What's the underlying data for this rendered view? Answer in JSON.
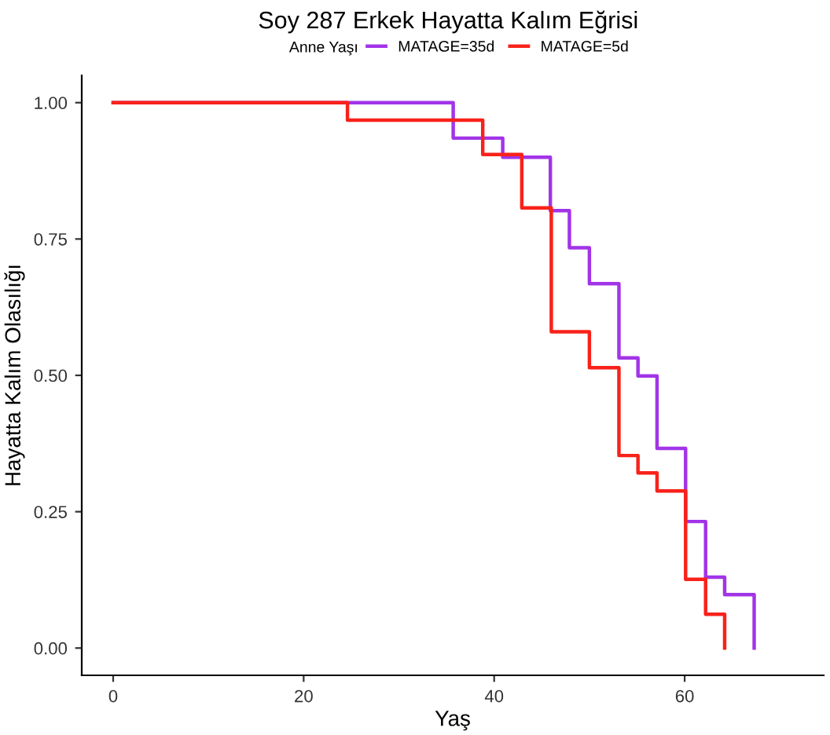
{
  "chart_data": {
    "type": "step",
    "title": "Soy 287 Erkek Hayatta Kalım Eğrisi",
    "xlabel": "Yaş",
    "ylabel": "Hayatta Kalım Olasılığı",
    "legend_title": "Anne Yaşı",
    "legend": "top",
    "grid": false,
    "xlim": [
      -3.3,
      74.6
    ],
    "xticks": [
      0,
      20,
      40,
      60
    ],
    "ylim": [
      -0.05,
      1.05
    ],
    "yticks": [
      {
        "value": 0,
        "label": "0.00"
      },
      {
        "value": 0.25,
        "label": "0.25"
      },
      {
        "value": 0.5,
        "label": "0.50"
      },
      {
        "value": 0.75,
        "label": "0.75"
      },
      {
        "value": 1,
        "label": "1.00"
      }
    ],
    "series": [
      {
        "name": "MATAGE=35d",
        "color": "#a234e8",
        "x": [
          0,
          35.7,
          40.9,
          45.9,
          47.9,
          50.0,
          53.1,
          55.1,
          57.1,
          60.1,
          62.2,
          64.2,
          67.3
        ],
        "values": [
          1,
          0.935,
          0.9,
          0.802,
          0.734,
          0.668,
          0.532,
          0.499,
          0.366,
          0.232,
          0.13,
          0.098,
          0
        ]
      },
      {
        "name": "MATAGE=5d",
        "color": "#f8221a",
        "x": [
          0,
          24.6,
          38.8,
          42.9,
          46.0,
          50.0,
          53.1,
          55.1,
          57.1,
          60.1,
          62.2,
          64.2
        ],
        "values": [
          1,
          0.968,
          0.905,
          0.807,
          0.58,
          0.514,
          0.353,
          0.321,
          0.288,
          0.126,
          0.062,
          0
        ]
      }
    ]
  }
}
